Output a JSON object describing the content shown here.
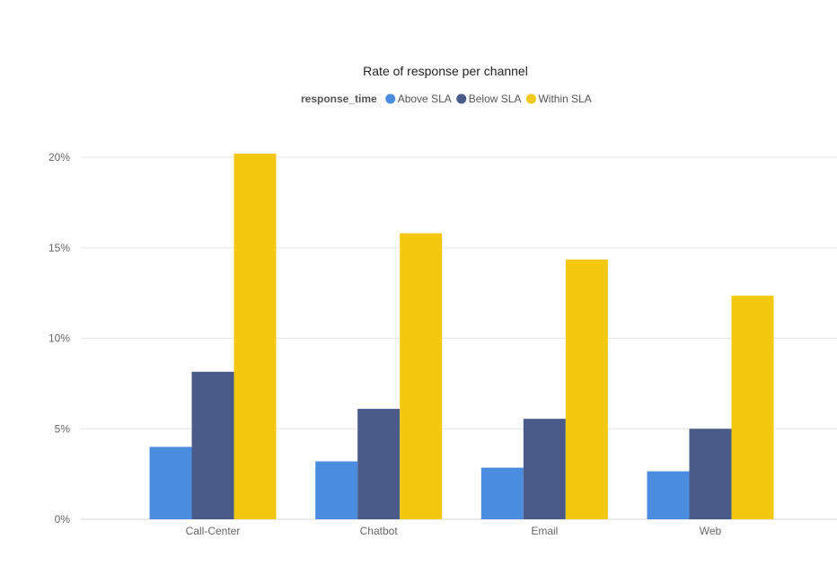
{
  "chart_data": {
    "type": "bar",
    "title": "Rate of response per channel",
    "legend": {
      "title": "response_time",
      "placement": "top-center"
    },
    "categories": [
      "Call-Center",
      "Chatbot",
      "Email",
      "Web"
    ],
    "series": [
      {
        "name": "Above SLA",
        "color": "#4a8ddf",
        "values": [
          4.0,
          3.2,
          2.85,
          2.65
        ]
      },
      {
        "name": "Below SLA",
        "color": "#4a5b8a",
        "values": [
          8.15,
          6.1,
          5.55,
          5.0
        ]
      },
      {
        "name": "Within SLA",
        "color": "#f2c811",
        "values": [
          20.2,
          15.8,
          14.35,
          12.35
        ]
      }
    ],
    "ylim": [
      0,
      20
    ],
    "yticks": [
      0,
      5,
      10,
      15,
      20
    ],
    "ytick_labels": [
      "0%",
      "5%",
      "10%",
      "15%",
      "20%"
    ],
    "xlabel": "",
    "ylabel": "",
    "grid": true
  }
}
